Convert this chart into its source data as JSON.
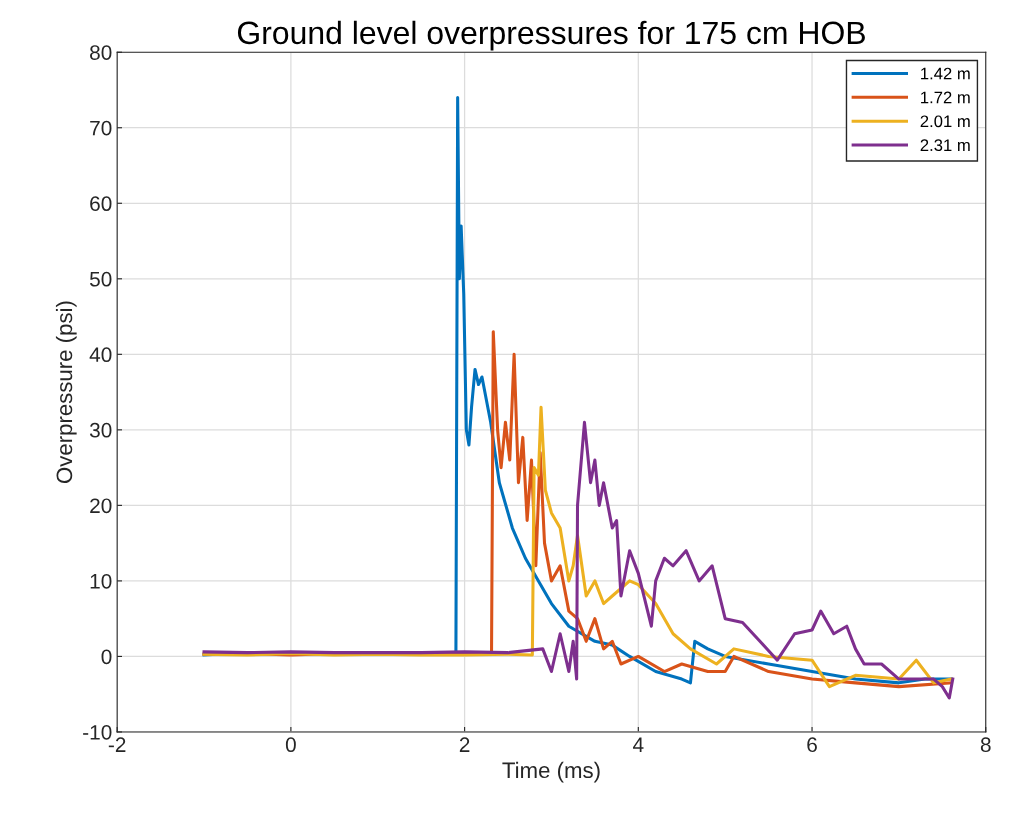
{
  "chart_data": {
    "type": "line",
    "title": "Ground level overpressures for 175 cm HOB",
    "xlabel": "Time (ms)",
    "ylabel": "Overpressure (psi)",
    "xlim": [
      -2,
      8
    ],
    "xticks": [
      -2,
      0,
      2,
      4,
      6,
      8
    ],
    "ylim": [
      -10,
      80
    ],
    "yticks": [
      -10,
      0,
      10,
      20,
      30,
      40,
      50,
      60,
      70,
      80
    ],
    "grid": true,
    "legend": "top right",
    "series": [
      {
        "name": "1.42 m",
        "color": "#0072bd",
        "x": [
          -1,
          -0.5,
          0,
          0.5,
          1,
          1.5,
          1.9,
          1.92,
          1.94,
          1.96,
          1.99,
          2.02,
          2.05,
          2.08,
          2.12,
          2.16,
          2.2,
          2.3,
          2.4,
          2.55,
          2.7,
          2.85,
          3.0,
          3.2,
          3.5,
          3.7,
          3.9,
          4.2,
          4.5,
          4.6,
          4.65,
          4.8,
          5.0,
          5.5,
          6.0,
          6.5,
          7.0,
          7.3,
          7.6
        ],
        "values": [
          0.2,
          0.5,
          0.3,
          0.5,
          0.3,
          0.4,
          0.3,
          74,
          50,
          57,
          48,
          30,
          28,
          33,
          38,
          36,
          37,
          31,
          23,
          17,
          13,
          10,
          7,
          4,
          2,
          1.5,
          0,
          -2,
          -3,
          -3.5,
          2,
          1,
          0,
          -1,
          -2,
          -3,
          -3.5,
          -3,
          -3
        ]
      },
      {
        "name": "1.72 m",
        "color": "#d95319",
        "x": [
          -1,
          -0.5,
          0,
          0.5,
          1,
          1.5,
          2,
          2.31,
          2.33,
          2.38,
          2.42,
          2.47,
          2.52,
          2.57,
          2.62,
          2.67,
          2.72,
          2.77,
          2.82,
          2.87,
          2.92,
          3.0,
          3.1,
          3.2,
          3.3,
          3.4,
          3.5,
          3.6,
          3.7,
          3.8,
          4.0,
          4.3,
          4.5,
          4.8,
          5.0,
          5.1,
          5.5,
          6.0,
          6.5,
          7.0,
          7.6
        ],
        "values": [
          0.3,
          0.4,
          0.2,
          0.4,
          0.3,
          0.3,
          0.3,
          0.3,
          43,
          30,
          25,
          31,
          26,
          40,
          23,
          29,
          18,
          26,
          12,
          27,
          15,
          10,
          12,
          6,
          5,
          2,
          5,
          1,
          2,
          -1,
          0,
          -2,
          -1,
          -2,
          -2,
          0,
          -2,
          -3,
          -3.5,
          -4,
          -3.5
        ]
      },
      {
        "name": "2.01 m",
        "color": "#edb120",
        "x": [
          -1,
          -0.5,
          0,
          0.5,
          1,
          1.5,
          2,
          2.5,
          2.78,
          2.8,
          2.85,
          2.88,
          2.93,
          3.0,
          3.1,
          3.2,
          3.25,
          3.3,
          3.4,
          3.5,
          3.6,
          3.7,
          3.9,
          4.0,
          4.2,
          4.4,
          4.6,
          4.9,
          5.1,
          5.5,
          6.0,
          6.2,
          6.5,
          7.0,
          7.2,
          7.4,
          7.6
        ],
        "values": [
          0.3,
          0.2,
          0.4,
          0.2,
          0.3,
          0.2,
          0.2,
          0.3,
          0.2,
          25,
          24,
          33,
          22,
          19,
          17,
          10,
          12,
          16,
          8,
          10,
          7,
          8,
          10,
          9.5,
          7,
          3,
          1,
          -1,
          1,
          0,
          -0.5,
          -4,
          -2.5,
          -3,
          -0.5,
          -3.5,
          -3
        ]
      },
      {
        "name": "2.31 m",
        "color": "#7e2f8e",
        "x": [
          -1,
          -0.5,
          0,
          0.5,
          1,
          1.5,
          2,
          2.5,
          2.9,
          3.0,
          3.1,
          3.2,
          3.25,
          3.29,
          3.3,
          3.38,
          3.45,
          3.5,
          3.55,
          3.6,
          3.7,
          3.75,
          3.8,
          3.9,
          4.0,
          4.15,
          4.2,
          4.3,
          4.4,
          4.55,
          4.7,
          4.85,
          5.0,
          5.2,
          5.4,
          5.6,
          5.8,
          6.0,
          6.1,
          6.25,
          6.4,
          6.5,
          6.6,
          6.8,
          7.0,
          7.2,
          7.4,
          7.5,
          7.58,
          7.62
        ],
        "values": [
          0.6,
          0.5,
          0.6,
          0.5,
          0.5,
          0.5,
          0.6,
          0.5,
          1,
          -2,
          3,
          -2,
          2,
          -3,
          20,
          31,
          23,
          26,
          20,
          23,
          17,
          18,
          8,
          14,
          11,
          4,
          10,
          13,
          12,
          14,
          10,
          12,
          5,
          4.5,
          2,
          -0.5,
          3,
          3.5,
          6,
          3,
          4,
          1,
          -1,
          -1,
          -3,
          -3,
          -3,
          -4,
          -5.5,
          -3
        ]
      }
    ]
  }
}
